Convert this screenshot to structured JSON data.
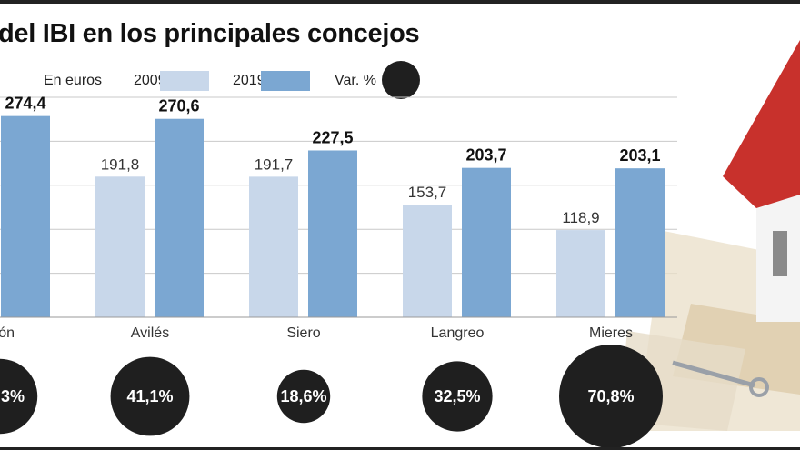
{
  "chart_data": {
    "type": "bar",
    "title": "del IBI en los principales concejos",
    "unit_label": "En euros",
    "categories": [
      "ón",
      "Avilés",
      "Siero",
      "Langreo",
      "Mieres"
    ],
    "series": [
      {
        "name": "2009",
        "color": "#c8d7ea",
        "values": [
          null,
          191.8,
          191.7,
          153.7,
          118.9
        ],
        "labels": [
          "",
          "191,8",
          "191,7",
          "153,7",
          "118,9"
        ]
      },
      {
        "name": "2019",
        "color": "#7ba7d2",
        "values": [
          274.4,
          270.6,
          227.5,
          203.7,
          203.1
        ],
        "labels": [
          "274,4",
          "270,6",
          "227,5",
          "203,7",
          "203,1"
        ]
      }
    ],
    "variation": {
      "name": "Var. %",
      "color": "#1f1f1f",
      "values": [
        null,
        41.1,
        18.6,
        32.5,
        70.8
      ],
      "labels": [
        "3%",
        "41,1%",
        "18,6%",
        "32,5%",
        "70,8%"
      ]
    },
    "ylim": [
      0,
      300
    ],
    "grid": true,
    "legend": "top"
  }
}
